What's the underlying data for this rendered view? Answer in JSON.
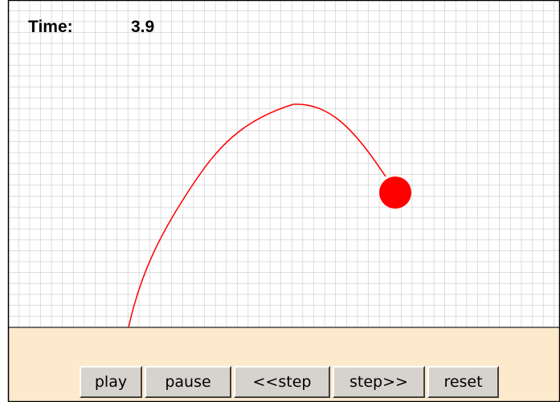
{
  "time_label": "Time:",
  "time_value": "3.9",
  "buttons": [
    "play",
    "pause",
    "<<step",
    "step>>",
    "reset"
  ]
}
